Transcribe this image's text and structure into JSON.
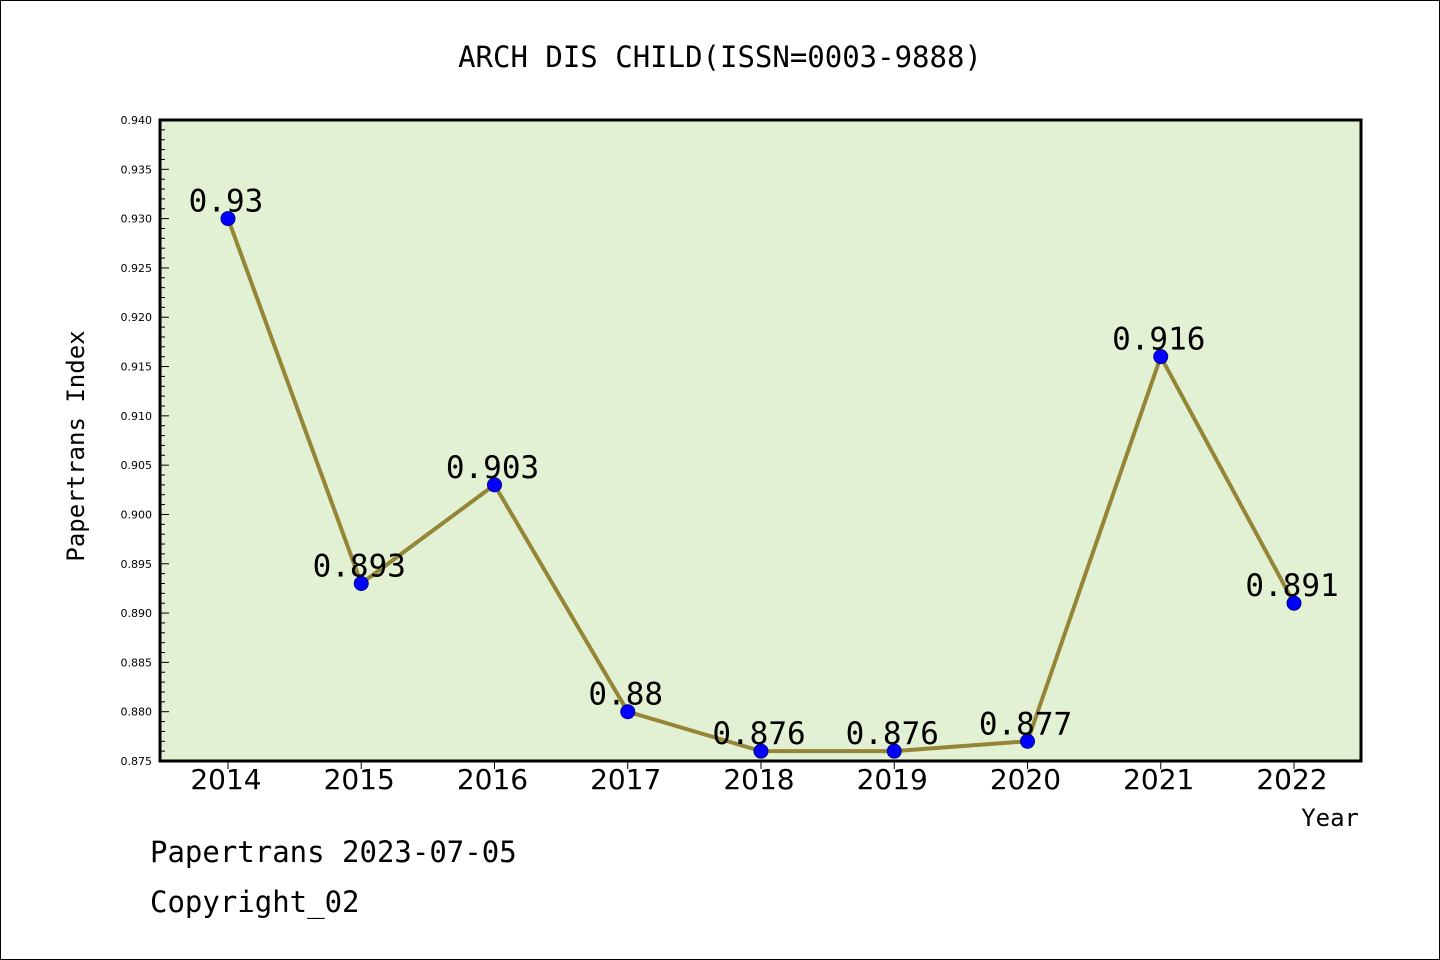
{
  "chart_data": {
    "type": "line",
    "title": "ARCH DIS CHILD(ISSN=0003-9888)",
    "xlabel": "Year",
    "ylabel": "Papertrans Index",
    "categories": [
      "2014",
      "2015",
      "2016",
      "2017",
      "2018",
      "2019",
      "2020",
      "2021",
      "2022"
    ],
    "values": [
      0.93,
      0.893,
      0.903,
      0.88,
      0.876,
      0.876,
      0.877,
      0.916,
      0.891
    ],
    "data_labels": [
      "0.93",
      "0.893",
      "0.903",
      "0.88",
      "0.876",
      "0.876",
      "0.877",
      "0.916",
      "0.891"
    ],
    "ylim": [
      0.875,
      0.94
    ],
    "yticks": [
      "0.875",
      "0.880",
      "0.885",
      "0.890",
      "0.895",
      "0.900",
      "0.905",
      "0.910",
      "0.915",
      "0.920",
      "0.925",
      "0.930",
      "0.935",
      "0.940"
    ],
    "grid": false,
    "legend": "none",
    "colors": {
      "plot_background": "#e2f0d4",
      "line": "#948636",
      "marker": "#0000ff"
    }
  },
  "footer": {
    "date_line": "Papertrans 2023-07-05",
    "copyright": "Copyright_02"
  }
}
